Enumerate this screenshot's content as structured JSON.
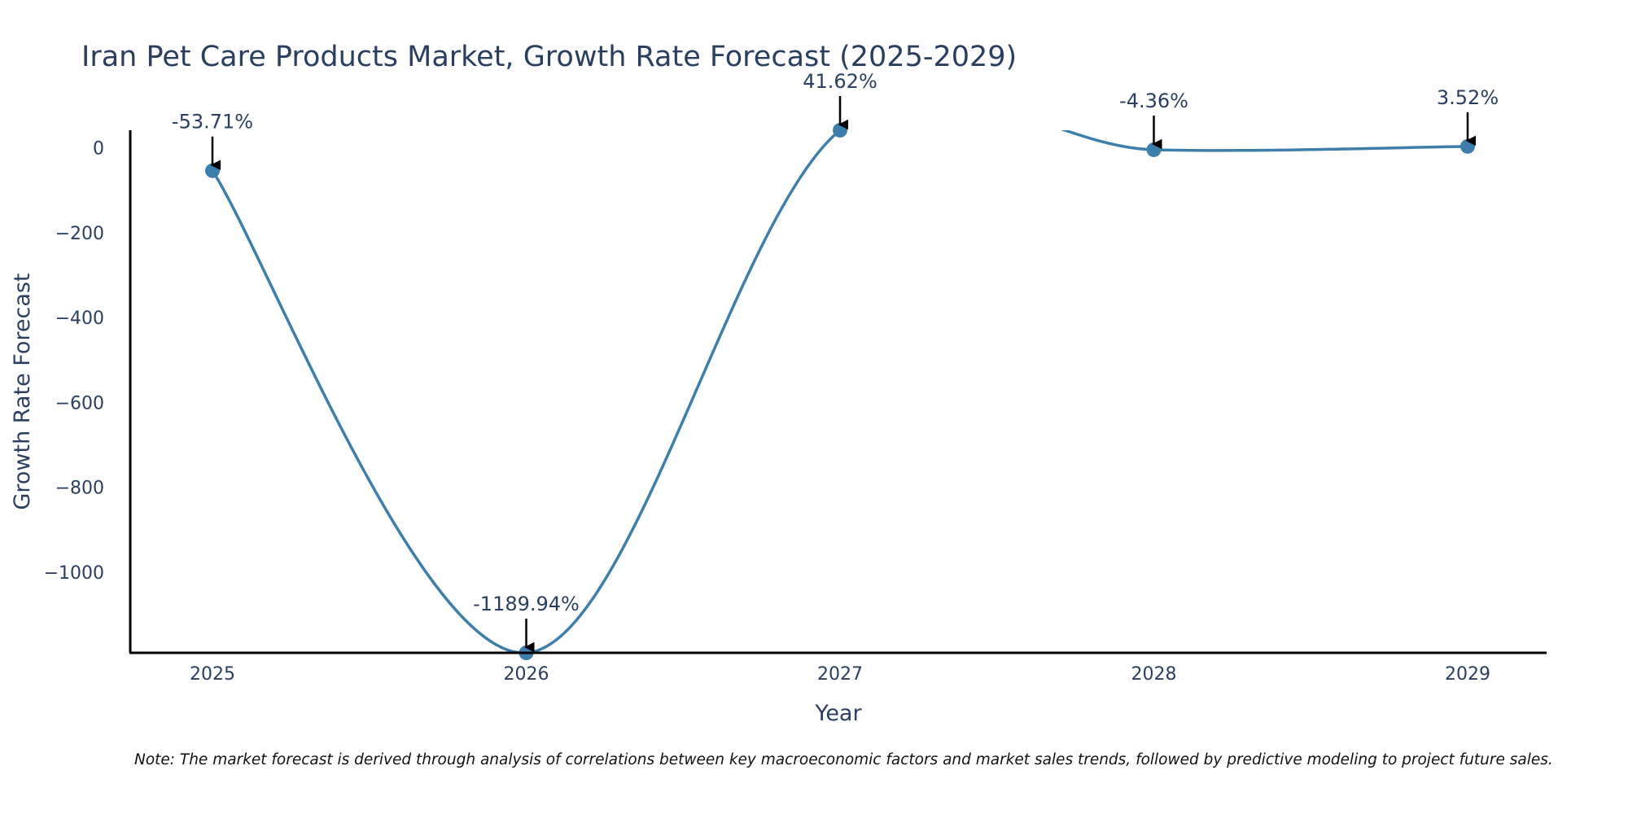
{
  "chart_data": {
    "type": "line",
    "title": "Iran Pet Care Products Market, Growth Rate Forecast (2025-2029)",
    "xlabel": "Year",
    "ylabel": "Growth Rate Forecast",
    "categories": [
      "2025",
      "2026",
      "2027",
      "2028",
      "2029"
    ],
    "values": [
      -53.71,
      -1189.94,
      41.62,
      -4.36,
      3.52
    ],
    "data_labels": [
      "-53.71%",
      "-1189.94%",
      "41.62%",
      "-4.36%",
      "3.52%"
    ],
    "ylim": [
      -1189.94,
      41.62
    ],
    "yticks": [
      0,
      -200,
      -400,
      -600,
      -800,
      -1000
    ],
    "ytick_labels": [
      "0",
      "−200",
      "−400",
      "−600",
      "−800",
      "−1000"
    ],
    "grid": false,
    "line_shape": "spline",
    "series_color": "#3d7eaa",
    "marker_color": "#3d7eaa",
    "arrow_color": "#000000",
    "note": "Note: The market forecast is derived through analysis of correlations between key macroeconomic factors and market sales trends, followed by predictive modeling to project future sales."
  }
}
